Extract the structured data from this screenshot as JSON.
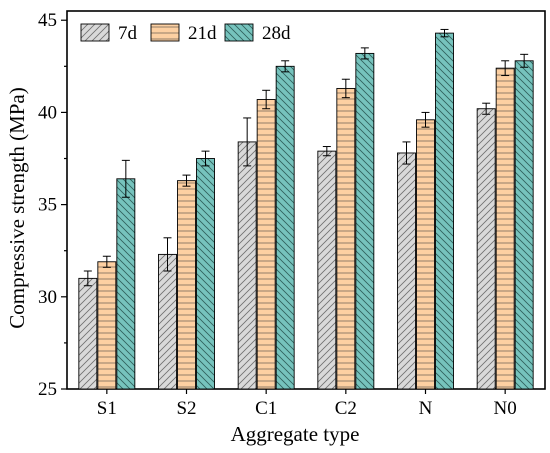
{
  "chart_data": {
    "type": "bar",
    "title": "",
    "xlabel": "Aggregate type",
    "ylabel": "Compressive strength (MPa)",
    "ylim": [
      25,
      45.5
    ],
    "yticks": [
      25,
      30,
      35,
      40,
      45
    ],
    "categories": [
      "S1",
      "S2",
      "C1",
      "C2",
      "N",
      "N0"
    ],
    "legend": {
      "placement": "top-left",
      "orientation": "horizontal"
    },
    "grid": false,
    "series": [
      {
        "name": "7d",
        "color": "#d9d9d9",
        "hatch": "diagonal-up",
        "values": [
          31.0,
          32.3,
          38.4,
          37.9,
          37.8,
          40.2
        ],
        "errors": [
          0.4,
          0.9,
          1.3,
          0.25,
          0.6,
          0.3
        ]
      },
      {
        "name": "21d",
        "color": "#fdd0a2",
        "hatch": "horizontal",
        "values": [
          31.9,
          36.3,
          40.7,
          41.3,
          39.6,
          42.4
        ],
        "errors": [
          0.3,
          0.3,
          0.5,
          0.5,
          0.4,
          0.4
        ]
      },
      {
        "name": "28d",
        "color": "#76c3bd",
        "hatch": "diagonal-down",
        "values": [
          36.4,
          37.5,
          42.5,
          43.2,
          44.3,
          42.8
        ],
        "errors": [
          1.0,
          0.4,
          0.3,
          0.3,
          0.2,
          0.35
        ]
      }
    ]
  }
}
